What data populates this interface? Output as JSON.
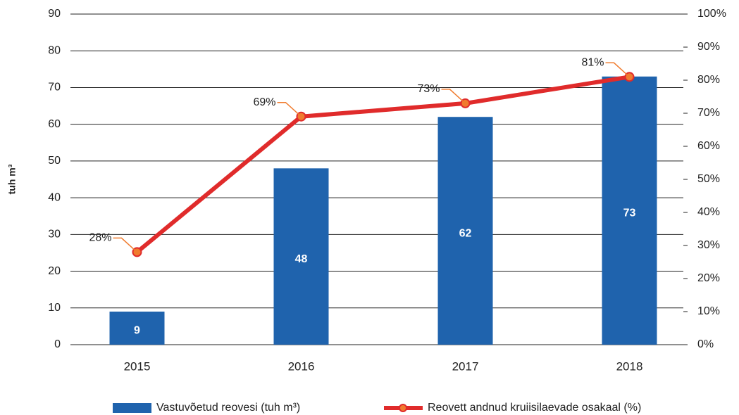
{
  "chart_data": {
    "type": "bar_line",
    "y_axis_label": "tuh m³",
    "categories": [
      "2015",
      "2016",
      "2017",
      "2018"
    ],
    "series": [
      {
        "name": "Vastuvõetud reovesi (tuh m³)",
        "type": "bar",
        "color": "#1f63ad",
        "values": [
          9,
          48,
          62,
          73
        ]
      },
      {
        "name": "Reovett andnud kruiisilaevade osakaal (%)",
        "type": "line",
        "axis": "y2",
        "color": "#e02b2b",
        "marker_color": "#f07b2e",
        "values": [
          28,
          69,
          73,
          81
        ],
        "value_labels": [
          "28%",
          "69%",
          "73%",
          "81%"
        ]
      }
    ],
    "ylim": [
      0,
      90
    ],
    "yticks": [
      0,
      10,
      20,
      30,
      40,
      50,
      60,
      70,
      80,
      90
    ],
    "y2lim": [
      0,
      100
    ],
    "y2ticks": [
      {
        "value": 0,
        "label": "0%"
      },
      {
        "value": 10,
        "label": "10%"
      },
      {
        "value": 20,
        "label": "20%"
      },
      {
        "value": 30,
        "label": "30%"
      },
      {
        "value": 40,
        "label": "40%"
      },
      {
        "value": 50,
        "label": "50%"
      },
      {
        "value": 60,
        "label": "60%"
      },
      {
        "value": 70,
        "label": "70%"
      },
      {
        "value": 80,
        "label": "80%"
      },
      {
        "value": 90,
        "label": "90%"
      },
      {
        "value": 100,
        "label": "100%"
      }
    ],
    "grid": true,
    "legend": "bottom"
  }
}
